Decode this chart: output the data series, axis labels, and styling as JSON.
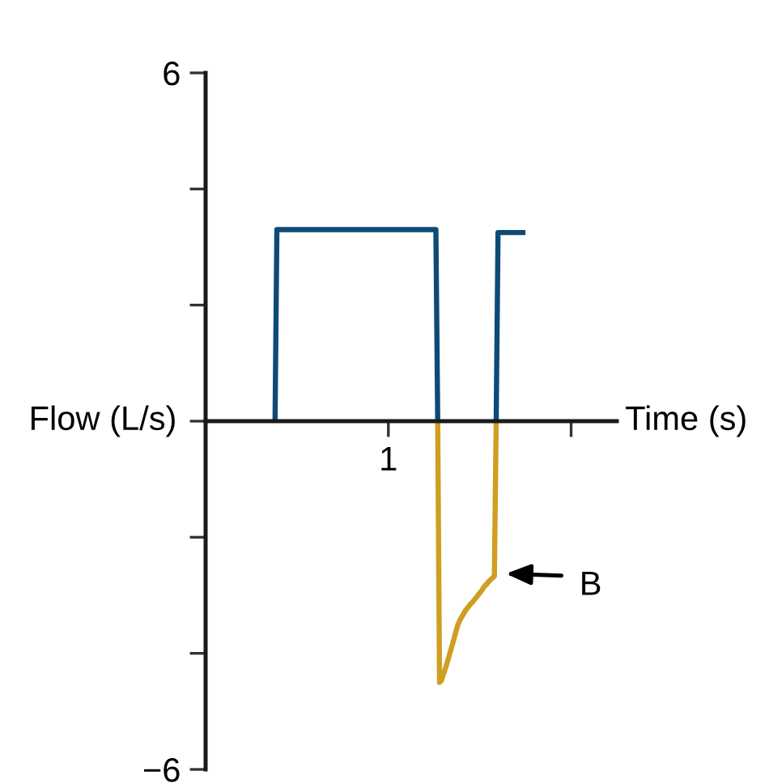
{
  "chart_data": {
    "type": "line",
    "xlabel": "Time (s)",
    "ylabel": "Flow (L/s)",
    "categories": [
      null,
      null,
      null,
      null,
      null,
      null,
      null,
      null,
      null,
      null,
      null,
      null,
      null,
      null,
      null,
      null,
      null,
      null,
      null,
      null,
      null,
      null,
      null,
      null,
      null,
      null,
      null,
      null,
      null,
      null,
      null,
      null,
      null,
      null,
      null,
      null,
      null,
      null,
      null,
      null,
      null,
      null,
      null,
      null,
      null,
      null,
      null,
      null,
      null,
      null,
      null,
      null,
      null,
      null,
      null,
      null,
      null,
      null,
      null,
      null,
      null,
      null,
      null,
      null,
      null,
      null,
      null,
      null,
      null,
      null,
      null,
      null,
      null,
      null,
      null,
      null,
      null,
      null,
      null,
      null,
      null,
      null,
      null,
      null,
      null,
      null,
      null,
      null,
      null,
      null,
      null,
      null,
      null,
      null,
      null,
      null,
      null,
      null,
      null,
      null,
      "1",
      null,
      null,
      null,
      null,
      null,
      null,
      null,
      null,
      null,
      null,
      null,
      null,
      null,
      null,
      null,
      null,
      null,
      null,
      null,
      null,
      null,
      null,
      null,
      null,
      null,
      null,
      null,
      null,
      null,
      null,
      null,
      null,
      null,
      null,
      null,
      null,
      null,
      null,
      null,
      null,
      null,
      null,
      null,
      null,
      null,
      null,
      null,
      null,
      null,
      null,
      null,
      null,
      null,
      null,
      null,
      null,
      null,
      null,
      null,
      null,
      null,
      null,
      null,
      null,
      null,
      null,
      null,
      null,
      null,
      null,
      null,
      null,
      null,
      null,
      null,
      null,
      null,
      null,
      null,
      null,
      null,
      null,
      null,
      null,
      null,
      null,
      null,
      null,
      null,
      null,
      null,
      null,
      null,
      null,
      null,
      null,
      null,
      null,
      null,
      null,
      null,
      null,
      null,
      null,
      null,
      null,
      null,
      null,
      null,
      null,
      null,
      null,
      null,
      null,
      null,
      null,
      null,
      null,
      null,
      null,
      null,
      null,
      null,
      null,
      null
    ],
    "ylim": [
      -6,
      6
    ],
    "yticks": [
      {
        "value": -6,
        "label": "−6"
      },
      {
        "value": -4,
        "label": null
      },
      {
        "value": -2,
        "label": null
      },
      {
        "value": 0,
        "label": null
      },
      {
        "value": 2,
        "label": null
      },
      {
        "value": 4,
        "label": null
      },
      {
        "value": 6,
        "label": "6"
      }
    ],
    "series": [
      {
        "color": "#0d4a78",
        "values": [
          null,
          null,
          null,
          null,
          null,
          null,
          null,
          null,
          null,
          null,
          null,
          null,
          null,
          null,
          null,
          null,
          null,
          null,
          null,
          null,
          null,
          null,
          null,
          null,
          null,
          null,
          null,
          null,
          null,
          null,
          null,
          null,
          null,
          null,
          null,
          null,
          null,
          null,
          0,
          3.3,
          3.3,
          3.3,
          3.3,
          3.3,
          3.3,
          3.3,
          3.3,
          3.3,
          3.3,
          3.3,
          3.3,
          3.3,
          3.3,
          3.3,
          3.3,
          3.3,
          3.3,
          3.3,
          3.3,
          3.3,
          3.3,
          3.3,
          3.3,
          3.3,
          3.3,
          3.3,
          3.3,
          3.3,
          3.3,
          3.3,
          3.3,
          3.3,
          3.3,
          3.3,
          3.3,
          3.3,
          3.3,
          3.3,
          3.3,
          3.3,
          3.3,
          3.3,
          3.3,
          3.3,
          3.3,
          3.3,
          3.3,
          3.3,
          3.3,
          3.3,
          3.3,
          3.3,
          3.3,
          3.3,
          3.3,
          3.3,
          3.3,
          3.3,
          3.3,
          3.3,
          3.3,
          3.3,
          3.3,
          3.3,
          3.3,
          3.3,
          3.3,
          3.3,
          3.3,
          3.3,
          3.3,
          3.3,
          3.3,
          3.3,
          3.3,
          3.3,
          3.3,
          3.3,
          3.3,
          3.3,
          3.3,
          3.3,
          3.3,
          3.3,
          3.3,
          3.3,
          3.3,
          0,
          null,
          null,
          null,
          null,
          null,
          null,
          null,
          null,
          null,
          null,
          null,
          null,
          null,
          null,
          null,
          null,
          null,
          null,
          null,
          null,
          null,
          null,
          null,
          null,
          null,
          null,
          null,
          null,
          null,
          null,
          null,
          null,
          null,
          null,
          null,
          null,
          null,
          null,
          null,
          null,
          null,
          null,
          null,
          null,
          null,
          null,
          null,
          null,
          null,
          null,
          null,
          null,
          null,
          null,
          null,
          null,
          null,
          null,
          null,
          null,
          null,
          null,
          null,
          null,
          null,
          null,
          null,
          null,
          null,
          null,
          null,
          null,
          null,
          null,
          null,
          null,
          null,
          null,
          null,
          null,
          null,
          null,
          null,
          null,
          null,
          null,
          null,
          null,
          null,
          null,
          null,
          null,
          null,
          null,
          null,
          null,
          null,
          null
        ]
      },
      {
        "color": "#0d4a78",
        "values": [
          null,
          null,
          null,
          null,
          null,
          null,
          null,
          null,
          null,
          null,
          null,
          null,
          null,
          null,
          null,
          null,
          null,
          null,
          null,
          null,
          null,
          null,
          null,
          null,
          null,
          null,
          null,
          null,
          null,
          null,
          null,
          null,
          null,
          null,
          null,
          null,
          null,
          null,
          null,
          null,
          null,
          null,
          null,
          null,
          null,
          null,
          null,
          null,
          null,
          null,
          null,
          null,
          null,
          null,
          null,
          null,
          null,
          null,
          null,
          null,
          null,
          null,
          null,
          null,
          null,
          null,
          null,
          null,
          null,
          null,
          null,
          null,
          null,
          null,
          null,
          null,
          null,
          null,
          null,
          null,
          null,
          null,
          null,
          null,
          null,
          null,
          null,
          null,
          null,
          null,
          null,
          null,
          null,
          null,
          null,
          null,
          null,
          null,
          null,
          null,
          null,
          null,
          null,
          null,
          null,
          null,
          null,
          null,
          null,
          null,
          null,
          null,
          null,
          null,
          null,
          null,
          null,
          null,
          null,
          null,
          null,
          null,
          null,
          null,
          null,
          null,
          null,
          null,
          null,
          null,
          null,
          null,
          null,
          null,
          null,
          null,
          null,
          null,
          null,
          null,
          null,
          null,
          null,
          null,
          null,
          null,
          null,
          null,
          null,
          null,
          null,
          null,
          null,
          null,
          null,
          null,
          null,
          null,
          null,
          0,
          3.25,
          3.25,
          3.25,
          3.25,
          3.25,
          3.25,
          3.25,
          3.25,
          3.25,
          3.25,
          3.25,
          3.25,
          3.25,
          3.25,
          3.25,
          3.25,
          null,
          null,
          null,
          null,
          null,
          null,
          null,
          null,
          null,
          null,
          null,
          null,
          null,
          null,
          null,
          null,
          null,
          null,
          null,
          null,
          null,
          null,
          null,
          null,
          null,
          null,
          null,
          null,
          null,
          null,
          null,
          null,
          null,
          null,
          null,
          null,
          null,
          null,
          null,
          null,
          null,
          null,
          null,
          null,
          null,
          null,
          null,
          null,
          null,
          null
        ]
      },
      {
        "color": "#cf9e22",
        "values": [
          null,
          null,
          null,
          null,
          null,
          null,
          null,
          null,
          null,
          null,
          null,
          null,
          null,
          null,
          null,
          null,
          null,
          null,
          null,
          null,
          null,
          null,
          null,
          null,
          null,
          null,
          null,
          null,
          null,
          null,
          null,
          null,
          null,
          null,
          null,
          null,
          null,
          null,
          null,
          null,
          null,
          null,
          null,
          null,
          null,
          null,
          null,
          null,
          null,
          null,
          null,
          null,
          null,
          null,
          null,
          null,
          null,
          null,
          null,
          null,
          null,
          null,
          null,
          null,
          null,
          null,
          null,
          null,
          null,
          null,
          null,
          null,
          null,
          null,
          null,
          null,
          null,
          null,
          null,
          null,
          null,
          null,
          null,
          null,
          null,
          null,
          null,
          null,
          null,
          null,
          null,
          null,
          null,
          null,
          null,
          null,
          null,
          null,
          null,
          null,
          null,
          null,
          null,
          null,
          null,
          null,
          null,
          null,
          null,
          null,
          null,
          null,
          null,
          null,
          null,
          null,
          null,
          null,
          null,
          null,
          null,
          null,
          null,
          null,
          null,
          null,
          null,
          0,
          -4.5,
          -4.47,
          -4.37,
          -4.28,
          -4.18,
          -4.07,
          -3.96,
          -3.85,
          -3.74,
          -3.62,
          -3.51,
          -3.44,
          -3.38,
          -3.33,
          -3.27,
          -3.23,
          -3.19,
          -3.15,
          -3.12,
          -3.08,
          -3.04,
          -3.0,
          -2.96,
          -2.92,
          -2.87,
          -2.83,
          -2.8,
          -2.76,
          -2.73,
          -2.7,
          -2.67,
          0,
          null,
          null,
          null,
          null,
          null,
          null,
          null,
          null,
          null,
          null,
          null,
          null,
          null,
          null,
          null,
          null,
          null,
          null,
          null,
          null,
          null,
          null,
          null,
          null,
          null,
          null,
          null,
          null,
          null,
          null,
          null,
          null,
          null,
          null,
          null,
          null,
          null,
          null,
          null,
          null,
          null,
          null,
          null,
          null,
          null,
          null,
          null,
          null,
          null,
          null,
          null,
          null,
          null,
          null,
          null,
          null,
          null,
          null,
          null,
          null,
          null,
          null,
          null,
          null,
          null,
          null
        ]
      }
    ],
    "annotations": [
      "B"
    ],
    "line_style": "solid"
  }
}
